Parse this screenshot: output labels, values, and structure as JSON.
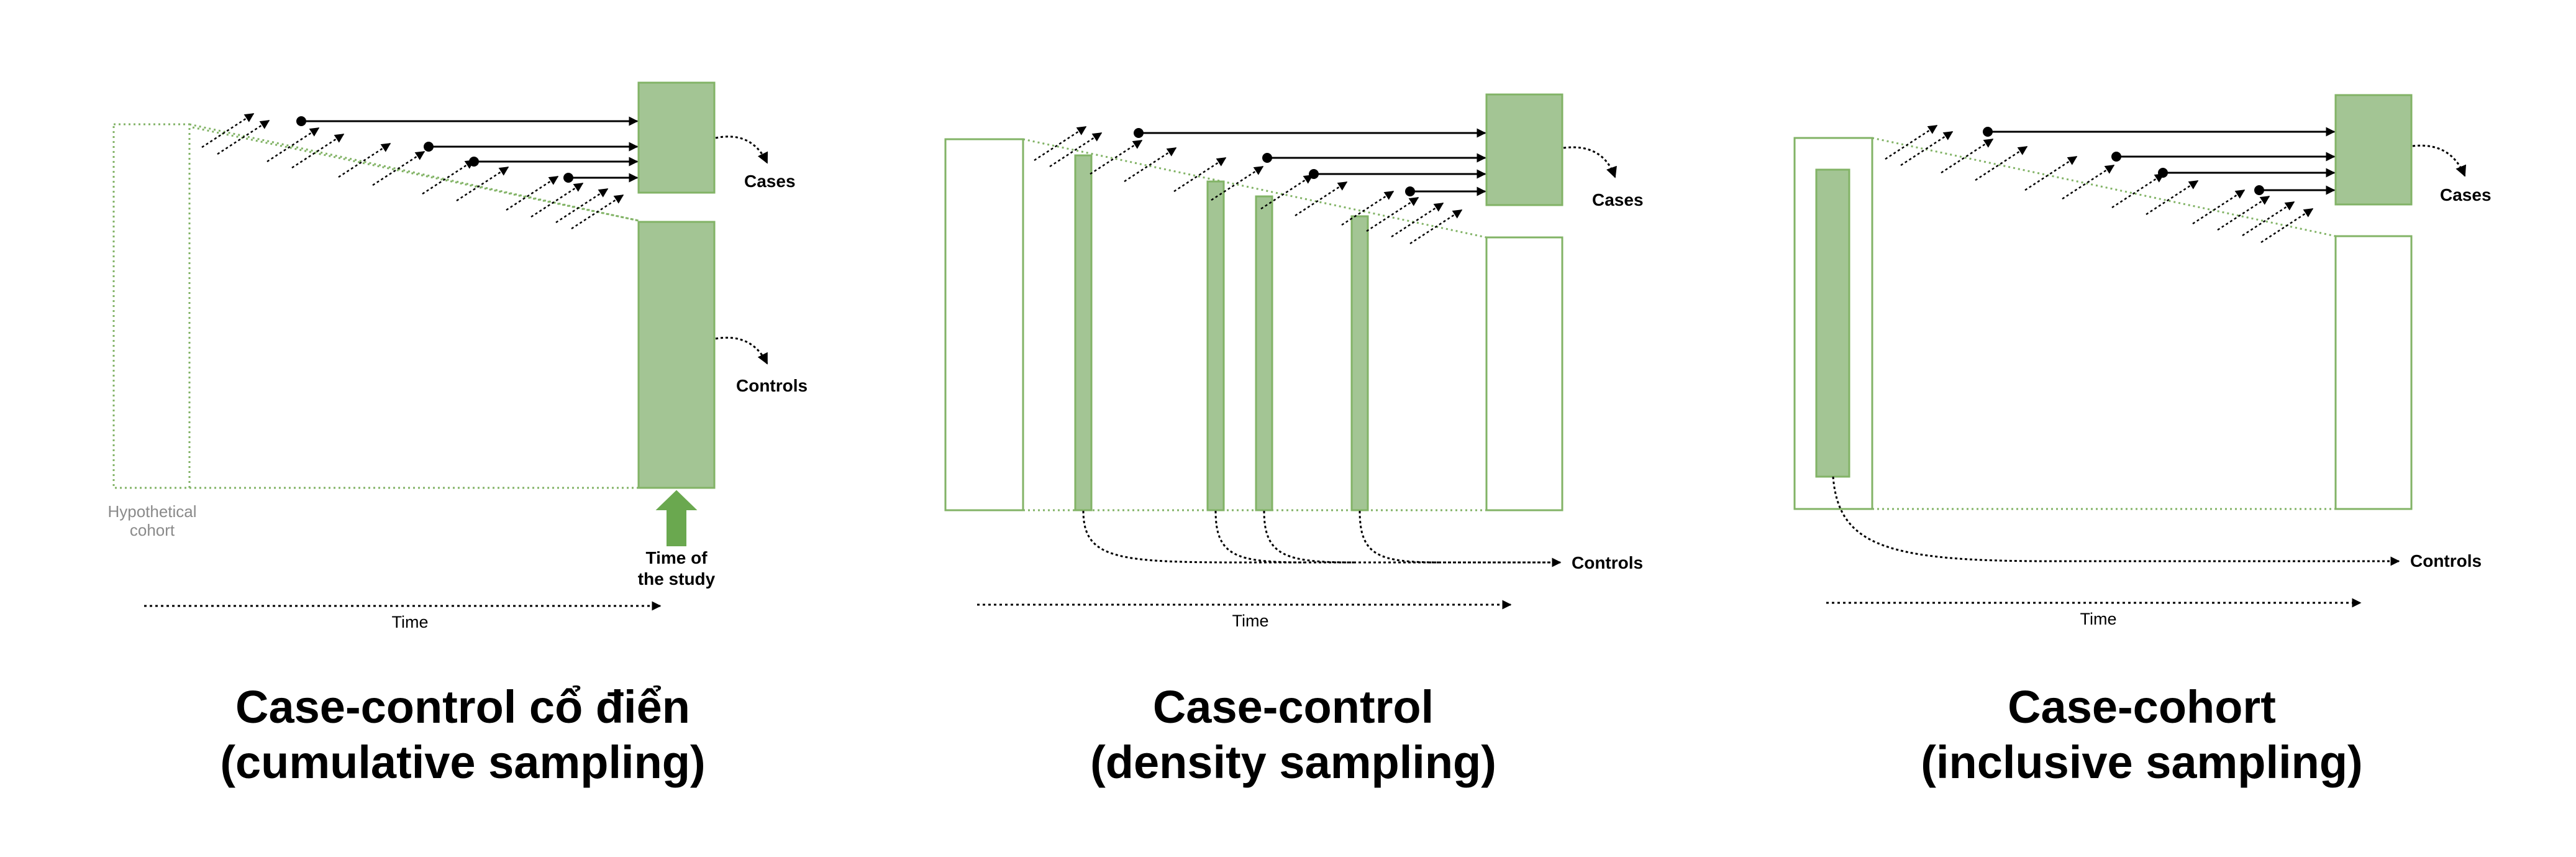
{
  "colors": {
    "fill": "#a3c594",
    "stroke": "#82b366",
    "arrow_up": "#6aa84f",
    "text": "#000000",
    "hyp_text": "#8a8a8a"
  },
  "panels": [
    {
      "cases_label": "Cases",
      "controls_label": "Controls",
      "cohort_label_line1": "Hypothetical",
      "cohort_label_line2": "cohort",
      "study_label_line1": "Time of",
      "study_label_line2": "the study",
      "time_label": "Time",
      "title_line1": "Case-control cổ điển",
      "title_line2": "(cumulative sampling)"
    },
    {
      "cases_label": "Cases",
      "controls_label": "Controls",
      "time_label": "Time",
      "title_line1": "Case-control",
      "title_line2": "(density sampling)"
    },
    {
      "cases_label": "Cases",
      "controls_label": "Controls",
      "time_label": "Time",
      "title_line1": "Case-cohort",
      "title_line2": "(inclusive sampling)"
    }
  ]
}
